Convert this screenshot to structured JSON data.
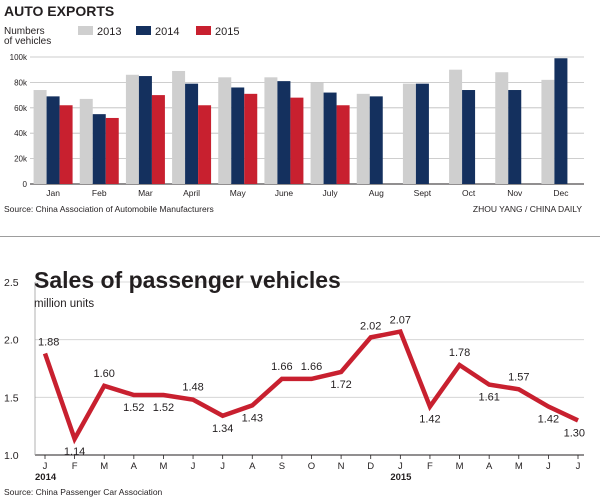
{
  "exports": {
    "title": "AUTO EXPORTS",
    "ylabel_line1": "Numbers",
    "ylabel_line2": "of vehicles",
    "source": "Source: China Association of Automobile Manufacturers",
    "credit": "ZHOU YANG / CHINA DAILY",
    "colors": {
      "2013": "#cfcfcf",
      "2014": "#14305e",
      "2015": "#c8202f"
    },
    "chart_data": {
      "type": "bar",
      "title": "AUTO EXPORTS",
      "ylabel": "Numbers of vehicles",
      "xlabel": "",
      "categories": [
        "Jan",
        "Feb",
        "Mar",
        "April",
        "May",
        "June",
        "July",
        "Aug",
        "Sept",
        "Oct",
        "Nov",
        "Dec"
      ],
      "yticks": [
        0,
        20000,
        40000,
        60000,
        80000,
        100000
      ],
      "ytick_labels": [
        "0",
        "20k",
        "40k",
        "60k",
        "80k",
        "100k"
      ],
      "ylim": [
        0,
        100000
      ],
      "grid": true,
      "legend": "top",
      "series": [
        {
          "name": "2013",
          "values": [
            74000,
            67000,
            86000,
            89000,
            84000,
            84000,
            80000,
            71000,
            79000,
            90000,
            88000,
            82000
          ]
        },
        {
          "name": "2014",
          "values": [
            69000,
            55000,
            85000,
            79000,
            76000,
            81000,
            72000,
            69000,
            79000,
            74000,
            74000,
            99000
          ]
        },
        {
          "name": "2015",
          "values": [
            62000,
            52000,
            70000,
            62000,
            71000,
            68000,
            62000,
            null,
            null,
            null,
            null,
            null
          ]
        }
      ]
    }
  },
  "sales": {
    "title": "Sales of passenger vehicles",
    "unit": "million units",
    "source": "Source: China Passenger Car Association",
    "line_color": "#c8202f",
    "chart_data": {
      "type": "line",
      "title": "Sales of passenger vehicles",
      "ylabel": "million units",
      "xlabel": "",
      "x": [
        "J",
        "F",
        "M",
        "A",
        "M",
        "J",
        "J",
        "A",
        "S",
        "O",
        "N",
        "D",
        "J",
        "F",
        "M",
        "A",
        "M",
        "J",
        "J"
      ],
      "year_labels": [
        {
          "index": 0,
          "label": "2014"
        },
        {
          "index": 12,
          "label": "2015"
        }
      ],
      "values": [
        1.88,
        1.14,
        1.6,
        1.52,
        1.52,
        1.48,
        1.34,
        1.43,
        1.66,
        1.66,
        1.72,
        2.02,
        2.07,
        1.42,
        1.78,
        1.61,
        1.57,
        1.42,
        1.3
      ],
      "value_labels": [
        "1.88",
        "1.14",
        "1.60",
        "1.52",
        "1.52",
        "1.48",
        "1.34",
        "1.43",
        "1.66",
        "1.66",
        "1.72",
        "2.02",
        "2.07",
        "1.42",
        "1.78",
        "1.61",
        "1.57",
        "1.42",
        "1.30"
      ],
      "yticks": [
        1.0,
        1.5,
        2.0,
        2.5
      ],
      "ytick_labels": [
        "1.0",
        "1.5",
        "2.0",
        "2.5"
      ],
      "ylim": [
        1.0,
        2.5
      ],
      "grid": true
    }
  }
}
